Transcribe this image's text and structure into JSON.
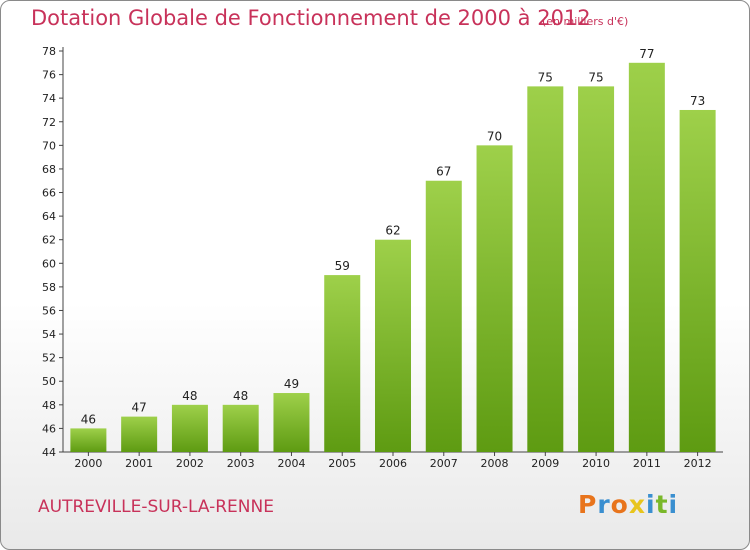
{
  "title": "Dotation Globale de Fonctionnement de 2000 à 2012",
  "unit": "(en milliers d'€)",
  "commune": "AUTREVILLE-SUR-LA-RENNE",
  "logo": "Proxiti",
  "colors": {
    "title": "#c8325a",
    "bar_top": "#9ed04a",
    "bar_bottom": "#5e9b12",
    "logo_letters": [
      "#e8741c",
      "#3a8fd0",
      "#e8741c",
      "#e8c51c",
      "#3a8fd0",
      "#7ab82a",
      "#3a8fd0"
    ]
  },
  "chart_data": {
    "type": "bar",
    "title": "Dotation Globale de Fonctionnement de 2000 à 2012",
    "subtitle": "(en milliers d'€)",
    "xlabel": "",
    "ylabel": "",
    "categories": [
      "2000",
      "2001",
      "2002",
      "2003",
      "2004",
      "2005",
      "2006",
      "2007",
      "2008",
      "2009",
      "2010",
      "2011",
      "2012"
    ],
    "values": [
      46,
      47,
      48,
      48,
      49,
      59,
      62,
      67,
      70,
      75,
      75,
      77,
      73
    ],
    "ylim": [
      44,
      78
    ],
    "yticks": [
      44,
      46,
      48,
      50,
      52,
      54,
      56,
      58,
      60,
      62,
      64,
      66,
      68,
      70,
      72,
      74,
      76,
      78
    ],
    "grid": false,
    "legend": "none"
  }
}
